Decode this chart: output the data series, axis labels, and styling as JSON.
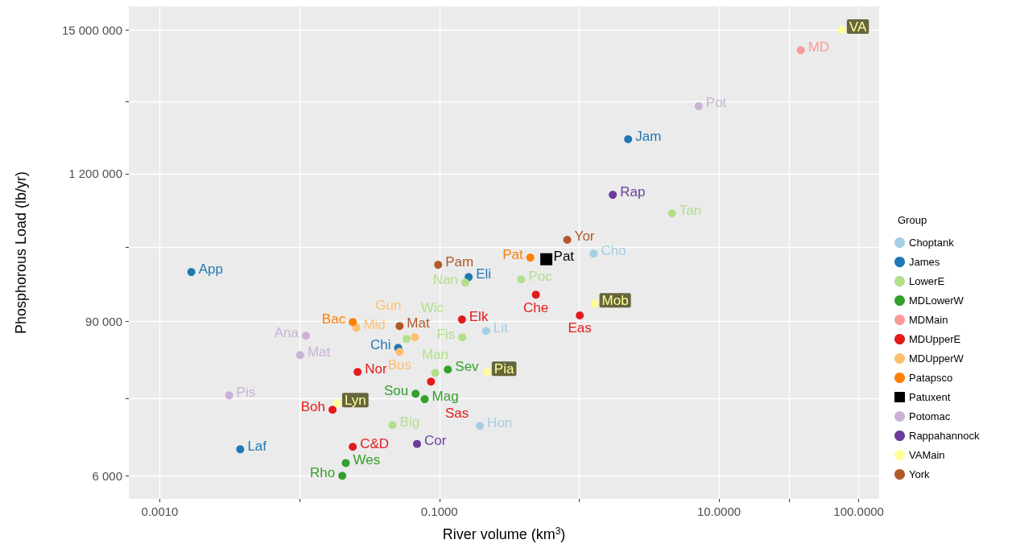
{
  "chart_data": {
    "type": "scatter",
    "xlabel": "River volume (km$^{3}$)",
    "ylabel": "Phosphorous Load (lb/yr)",
    "legend_title": "Group",
    "legend": "right",
    "log": "xy",
    "grid": true,
    "marker": "circle",
    "xlim": [
      0.0006,
      140
    ],
    "ylim": [
      4000,
      22600000
    ],
    "xticks": [
      {
        "value": 0.001,
        "label": "0.0010"
      },
      {
        "value": 0.01,
        "label": null
      },
      {
        "value": 0.1,
        "label": "0.1000"
      },
      {
        "value": 1,
        "label": null
      },
      {
        "value": 10,
        "label": "10.0000"
      },
      {
        "value": 31.62,
        "label": null
      },
      {
        "value": 100,
        "label": "100.0000"
      }
    ],
    "yticks": [
      {
        "value": 6000,
        "label": "6 000"
      },
      {
        "value": 23240,
        "label": null
      },
      {
        "value": 90000,
        "label": "90 000"
      },
      {
        "value": 328600,
        "label": null
      },
      {
        "value": 1200000,
        "label": "1 200 000"
      },
      {
        "value": 4243000,
        "label": null
      },
      {
        "value": 15000000,
        "label": "15 000 000"
      }
    ],
    "series": [
      {
        "name": "Choptank",
        "color": "#a6cee3",
        "x": [
          1.27,
          0.216,
          0.195
        ],
        "values": [
          296000,
          76200,
          14400
        ],
        "value_labels": [
          "Cho",
          "Lit",
          "Hon"
        ]
      },
      {
        "name": "James",
        "color": "#1f78b4",
        "x": [
          2.24,
          0.00168,
          0.162,
          0.0507,
          0.00376
        ],
        "values": [
          2200000,
          214000,
          196000,
          56600,
          9550
        ],
        "value_labels": [
          "Jam",
          "App",
          "Eli",
          "Chi",
          "Laf"
        ]
      },
      {
        "name": "LowerE",
        "color": "#b2df8a",
        "x": [
          4.62,
          0.385,
          0.153,
          0.0582,
          0.146,
          0.0933,
          0.0462
        ],
        "values": [
          600000,
          188000,
          178000,
          66200,
          68100,
          36500,
          14600
        ],
        "value_labels": [
          "Tan",
          "Poc",
          "Nan",
          "Wic",
          "Fis",
          "Man",
          "Big"
        ]
      },
      {
        "name": "MDLowerW",
        "color": "#33a02c",
        "x": [
          0.115,
          0.0676,
          0.0785,
          0.0214,
          0.0202
        ],
        "values": [
          38700,
          25300,
          23000,
          7510,
          6000
        ],
        "value_labels": [
          "Sev",
          "Sou",
          "Mag",
          "Wes",
          "Rho"
        ]
      },
      {
        "name": "MDMain",
        "color": "#fb9a99",
        "x": [
          38.5
        ],
        "values": [
          10500000
        ],
        "value_labels": [
          "MD"
        ]
      },
      {
        "name": "MDUpperE",
        "color": "#e31a1c",
        "x": [
          0.49,
          1.01,
          0.145,
          0.026,
          0.0871,
          0.0172,
          0.024
        ],
        "values": [
          144000,
          100000,
          93000,
          37100,
          31300,
          19100,
          9980
        ],
        "value_labels": [
          "Che",
          "Eas",
          "Elk",
          "Nor",
          "Sas",
          "Boh",
          "C&D"
        ]
      },
      {
        "name": "MDUpperW",
        "color": "#fdbf6f",
        "x": [
          0.0254,
          0.0668,
          0.0519
        ],
        "values": [
          80700,
          68100,
          52800
        ],
        "value_labels": [
          "Mid",
          "Gun",
          "Bus"
        ]
      },
      {
        "name": "Patapsco",
        "color": "#ff7f00",
        "x": [
          0.447,
          0.024
        ],
        "values": [
          276000,
          89100
        ],
        "value_labels": [
          "Pat",
          "Bac"
        ]
      },
      {
        "name": "Patuxent",
        "color": "#000000",
        "marker": "square",
        "x": [
          0.582
        ],
        "values": [
          268000
        ],
        "value_labels": [
          "Pat"
        ]
      },
      {
        "name": "Potomac",
        "color": "#cab2d6",
        "x": [
          7.16,
          0.0111,
          0.0101,
          0.00313
        ],
        "values": [
          3930000,
          70000,
          49900,
          24600
        ],
        "value_labels": [
          "Pot",
          "Ana",
          "Mat",
          "Pis"
        ]
      },
      {
        "name": "Rappahannock",
        "color": "#6a3d9a",
        "x": [
          1.74,
          0.0692
        ],
        "values": [
          830000,
          10500
        ],
        "value_labels": [
          "Rap",
          "Cor"
        ]
      },
      {
        "name": "VAMain",
        "color": "#ffff99",
        "x": [
          75.9,
          1.29,
          0.219,
          0.0186
        ],
        "values": [
          15000000,
          123000,
          37100,
          21400
        ],
        "value_labels": [
          "VA",
          "Mob",
          "Pia",
          "Lyn"
        ]
      },
      {
        "name": "York",
        "color": "#b15928",
        "x": [
          0.822,
          0.098,
          0.0519
        ],
        "values": [
          377000,
          243000,
          83000
        ],
        "value_labels": [
          "Yor",
          "Pam",
          "Mat"
        ]
      }
    ]
  }
}
